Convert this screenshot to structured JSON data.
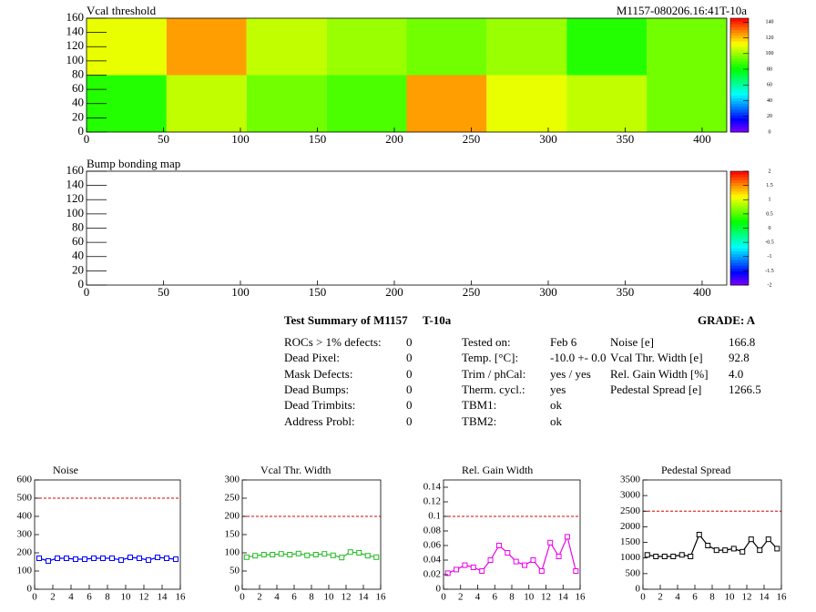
{
  "chart_data": [
    {
      "type": "heatmap",
      "title": "Vcal threshold",
      "annotation": "M1157-080206.16:41T-10a",
      "xbins": [
        0,
        52,
        104,
        156,
        208,
        260,
        312,
        364,
        416
      ],
      "ybins": [
        0,
        80,
        160
      ],
      "values": [
        [
          85,
          105,
          95,
          90,
          125,
          110,
          105,
          95
        ],
        [
          110,
          125,
          105,
          100,
          95,
          100,
          85,
          95
        ]
      ],
      "xlim": [
        0,
        416
      ],
      "ylim": [
        0,
        160
      ],
      "xticks": [
        0,
        50,
        100,
        150,
        200,
        250,
        300,
        350,
        400
      ],
      "yticks": [
        0,
        20,
        40,
        60,
        80,
        100,
        120,
        140,
        160
      ],
      "zlim": [
        0,
        145
      ],
      "zticks": [
        0,
        20,
        40,
        60,
        80,
        100,
        120,
        140
      ]
    },
    {
      "type": "heatmap",
      "title": "Bump bonding map",
      "xlim": [
        0,
        416
      ],
      "ylim": [
        0,
        160
      ],
      "xticks": [
        0,
        50,
        100,
        150,
        200,
        250,
        300,
        350,
        400
      ],
      "yticks": [
        0,
        20,
        40,
        60,
        80,
        100,
        120,
        140,
        160
      ],
      "zlim": [
        -2,
        2
      ],
      "zticks": [
        -2,
        -1.5,
        -1,
        -0.5,
        0,
        0.5,
        1,
        1.5,
        2
      ]
    },
    {
      "type": "line",
      "title": "Noise",
      "color": "#0000ff",
      "x": [
        0.5,
        1.5,
        2.5,
        3.5,
        4.5,
        5.5,
        6.5,
        7.5,
        8.5,
        9.5,
        10.5,
        11.5,
        12.5,
        13.5,
        14.5,
        15.5
      ],
      "values": [
        170,
        155,
        170,
        170,
        165,
        165,
        170,
        170,
        170,
        160,
        175,
        170,
        160,
        175,
        170,
        165
      ],
      "threshold": {
        "value": 500,
        "color": "#dd0000"
      },
      "xlim": [
        0,
        16
      ],
      "xticks": [
        0,
        2,
        4,
        6,
        8,
        10,
        12,
        14,
        16
      ],
      "ylim": [
        0,
        600
      ],
      "yticks": [
        0,
        100,
        200,
        300,
        400,
        500,
        600
      ]
    },
    {
      "type": "line",
      "title": "Vcal Thr. Width",
      "color": "#22bb22",
      "x": [
        0.5,
        1.5,
        2.5,
        3.5,
        4.5,
        5.5,
        6.5,
        7.5,
        8.5,
        9.5,
        10.5,
        11.5,
        12.5,
        13.5,
        14.5,
        15.5
      ],
      "values": [
        88,
        92,
        95,
        95,
        97,
        95,
        98,
        93,
        95,
        97,
        93,
        87,
        102,
        100,
        92,
        88
      ],
      "threshold": {
        "value": 200,
        "color": "#dd0000"
      },
      "xlim": [
        0,
        16
      ],
      "xticks": [
        0,
        2,
        4,
        6,
        8,
        10,
        12,
        14,
        16
      ],
      "ylim": [
        0,
        300
      ],
      "yticks": [
        0,
        50,
        100,
        150,
        200,
        250,
        300
      ]
    },
    {
      "type": "line",
      "title": "Rel. Gain Width",
      "color": "#ee00ee",
      "x": [
        0.5,
        1.5,
        2.5,
        3.5,
        4.5,
        5.5,
        6.5,
        7.5,
        8.5,
        9.5,
        10.5,
        11.5,
        12.5,
        13.5,
        14.5,
        15.5
      ],
      "values": [
        0.022,
        0.027,
        0.033,
        0.03,
        0.025,
        0.04,
        0.06,
        0.05,
        0.038,
        0.033,
        0.04,
        0.025,
        0.064,
        0.045,
        0.072,
        0.025
      ],
      "threshold": {
        "value": 0.1,
        "color": "#dd0000"
      },
      "xlim": [
        0,
        16
      ],
      "xticks": [
        0,
        2,
        4,
        6,
        8,
        10,
        12,
        14,
        16
      ],
      "ylim": [
        0,
        0.15
      ],
      "yticks": [
        0,
        0.02,
        0.04,
        0.06,
        0.08,
        0.1,
        0.12,
        0.14
      ]
    },
    {
      "type": "line",
      "title": "Pedestal Spread",
      "color": "#000000",
      "x": [
        0.5,
        1.5,
        2.5,
        3.5,
        4.5,
        5.5,
        6.5,
        7.5,
        8.5,
        9.5,
        10.5,
        11.5,
        12.5,
        13.5,
        14.5,
        15.5
      ],
      "values": [
        1100,
        1050,
        1050,
        1050,
        1100,
        1050,
        1750,
        1400,
        1250,
        1250,
        1300,
        1200,
        1600,
        1250,
        1600,
        1300
      ],
      "threshold": {
        "value": 2500,
        "color": "#dd0000"
      },
      "xlim": [
        0,
        16
      ],
      "xticks": [
        0,
        2,
        4,
        6,
        8,
        10,
        12,
        14,
        16
      ],
      "ylim": [
        0,
        3500
      ],
      "yticks": [
        0,
        500,
        1000,
        1500,
        2000,
        2500,
        3000,
        3500
      ]
    }
  ],
  "summary": {
    "title": "Test Summary of M1157",
    "tag": "T-10a",
    "grade": "GRADE:  A",
    "defects": [
      [
        "ROCs > 1% defects:",
        "0"
      ],
      [
        "Dead Pixel:",
        "0"
      ],
      [
        "Mask Defects:",
        "0"
      ],
      [
        "Dead Bumps:",
        "0"
      ],
      [
        "Dead Trimbits:",
        "0"
      ],
      [
        "Address Probl:",
        "0"
      ]
    ],
    "tests": [
      [
        "Tested on:",
        "Feb 6"
      ],
      [
        "Temp. [°C]:",
        "-10.0 +- 0.0"
      ],
      [
        "Trim / phCal:",
        "yes / yes"
      ],
      [
        "Therm. cycl.:",
        "yes"
      ],
      [
        "TBM1:",
        "ok"
      ],
      [
        "TBM2:",
        "ok"
      ]
    ],
    "results": [
      [
        "Noise [e]",
        "166.8"
      ],
      [
        "Vcal Thr. Width [e]",
        "92.8"
      ],
      [
        "Rel. Gain Width [%]",
        "4.0"
      ],
      [
        "Pedestal Spread [e]",
        "1266.5"
      ]
    ]
  }
}
